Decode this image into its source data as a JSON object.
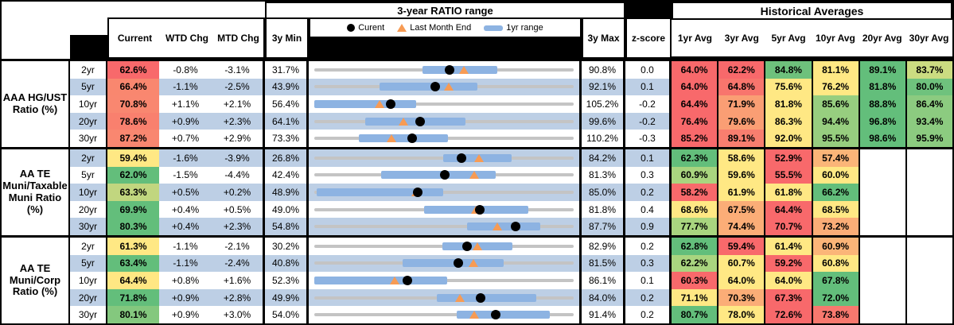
{
  "header": {
    "title_row": {
      "chart_group": "3-year RATIO range",
      "hist_group": "Historical Averages"
    },
    "columns": {
      "current": "Current",
      "wtd": "WTD Chg",
      "mtd": "MTD Chg",
      "y3min": "3y Min",
      "y3max": "3y Max",
      "zscore": "z-score"
    },
    "avg_columns": [
      "1yr Avg",
      "3yr Avg",
      "5yr Avg",
      "10yr Avg",
      "20yr Avg",
      "30yr Avg"
    ],
    "legend": [
      {
        "marker": "current-dot",
        "label": "Curent"
      },
      {
        "marker": "last-month-triangle",
        "label": "Last Month End"
      },
      {
        "marker": "1yr-range-bar",
        "label": "1yr range"
      }
    ]
  },
  "colors": {
    "row_stripe": "#BDCFE5",
    "range_bar": "#8DB3E2",
    "range_track": "#C4C4C4",
    "triangle": "#F79B54",
    "dot": "#000000",
    "red": "#F8696B",
    "yellow": "#FFE884",
    "green": "#63BE7B"
  },
  "chart_data": {
    "type": "bullet-range-table",
    "note": "Per row: gray track spans 3y Min to 3y Max; blue bar = 1yr range; black dot = current; orange triangle = last month end. All values are ratio percentages.",
    "sections": [
      {
        "label": "AAA HG/UST Ratio (%)",
        "rows": [
          {
            "tenor": "2yr",
            "current": 62.6,
            "current_color": "#F8696B",
            "wtd": "-0.8%",
            "mtd": "-3.1%",
            "y3_min": 31.7,
            "y3_max": 90.8,
            "z": "0.0",
            "last_month_end": 65.7,
            "yr1_range": [
              56.3,
              73.3
            ],
            "avgs": [
              {
                "v": 64.0,
                "c": "#F8696B"
              },
              {
                "v": 62.2,
                "c": "#F8696B"
              },
              {
                "v": 84.8,
                "c": "#6EC17C"
              },
              {
                "v": 81.1,
                "c": "#FFE884"
              },
              {
                "v": 89.1,
                "c": "#63BE7B"
              },
              {
                "v": 83.7,
                "c": "#CBDC81"
              }
            ]
          },
          {
            "tenor": "5yr",
            "current": 66.4,
            "current_color": "#F9876F",
            "wtd": "-1.1%",
            "mtd": "-2.5%",
            "y3_min": 43.9,
            "y3_max": 92.1,
            "z": "0.1",
            "last_month_end": 68.9,
            "yr1_range": [
              56.0,
              74.2
            ],
            "avgs": [
              {
                "v": 64.0,
                "c": "#F8696B"
              },
              {
                "v": 64.8,
                "c": "#F8756D"
              },
              {
                "v": 75.6,
                "c": "#FFE884"
              },
              {
                "v": 76.2,
                "c": "#FFE884"
              },
              {
                "v": 81.8,
                "c": "#63BE7B"
              },
              {
                "v": 80.0,
                "c": "#6FC27D"
              }
            ]
          },
          {
            "tenor": "10yr",
            "current": 70.8,
            "current_color": "#F98770",
            "wtd": "+1.1%",
            "mtd": "+2.1%",
            "y3_min": 56.4,
            "y3_max": 105.2,
            "z": "-0.2",
            "last_month_end": 68.7,
            "yr1_range": [
              56.4,
              75.6
            ],
            "avgs": [
              {
                "v": 64.4,
                "c": "#F8696B"
              },
              {
                "v": 71.9,
                "c": "#FA9E74"
              },
              {
                "v": 81.8,
                "c": "#FFE884"
              },
              {
                "v": 85.6,
                "c": "#97CE7F"
              },
              {
                "v": 88.8,
                "c": "#63BE7B"
              },
              {
                "v": 86.4,
                "c": "#8CCB80"
              }
            ]
          },
          {
            "tenor": "20yr",
            "current": 78.6,
            "current_color": "#F9806E",
            "wtd": "+0.9%",
            "mtd": "+2.3%",
            "y3_min": 64.1,
            "y3_max": 99.6,
            "z": "-0.2",
            "last_month_end": 76.3,
            "yr1_range": [
              71.1,
              84.8
            ],
            "avgs": [
              {
                "v": 76.4,
                "c": "#F8696B"
              },
              {
                "v": 79.6,
                "c": "#FA9E74"
              },
              {
                "v": 86.3,
                "c": "#FFE884"
              },
              {
                "v": 94.4,
                "c": "#97CE7F"
              },
              {
                "v": 96.8,
                "c": "#63BE7B"
              },
              {
                "v": 93.4,
                "c": "#8CCB80"
              }
            ]
          },
          {
            "tenor": "30yr",
            "current": 87.2,
            "current_color": "#F98770",
            "wtd": "+0.7%",
            "mtd": "+2.9%",
            "y3_min": 73.3,
            "y3_max": 110.2,
            "z": "-0.3",
            "last_month_end": 84.3,
            "yr1_range": [
              79.6,
              92.3
            ],
            "avgs": [
              {
                "v": 85.2,
                "c": "#F8696B"
              },
              {
                "v": 89.1,
                "c": "#F87E6F"
              },
              {
                "v": 92.0,
                "c": "#FFE884"
              },
              {
                "v": 95.5,
                "c": "#97CE7F"
              },
              {
                "v": 98.6,
                "c": "#63BE7B"
              },
              {
                "v": 95.9,
                "c": "#8CCB80"
              }
            ]
          }
        ]
      },
      {
        "label": "AA TE Muni/Taxable Muni Ratio (%)",
        "rows": [
          {
            "tenor": "2yr",
            "current": 59.4,
            "current_color": "#FFE884",
            "wtd": "-1.6%",
            "mtd": "-3.9%",
            "y3_min": 26.8,
            "y3_max": 84.2,
            "z": "0.1",
            "last_month_end": 63.3,
            "yr1_range": [
              55.4,
              70.5
            ],
            "avgs": [
              {
                "v": 62.3,
                "c": "#63BE7B"
              },
              {
                "v": 58.6,
                "c": "#FFE884"
              },
              {
                "v": 52.9,
                "c": "#F8696B"
              },
              {
                "v": 57.4,
                "c": "#FBB578"
              },
              {
                "v": null,
                "c": "#FFFFFF"
              },
              {
                "v": null,
                "c": "#FFFFFF"
              }
            ]
          },
          {
            "tenor": "5yr",
            "current": 62.0,
            "current_color": "#63BE7B",
            "wtd": "-1.5%",
            "mtd": "-4.4%",
            "y3_min": 42.4,
            "y3_max": 81.3,
            "z": "0.3",
            "last_month_end": 66.4,
            "yr1_range": [
              52.4,
              69.6
            ],
            "avgs": [
              {
                "v": 60.9,
                "c": "#A9D57F"
              },
              {
                "v": 59.6,
                "c": "#FFE884"
              },
              {
                "v": 55.5,
                "c": "#F8696B"
              },
              {
                "v": 60.0,
                "c": "#FFE884"
              },
              {
                "v": null,
                "c": "#FFFFFF"
              },
              {
                "v": null,
                "c": "#FFFFFF"
              }
            ]
          },
          {
            "tenor": "10yr",
            "current": 63.3,
            "current_color": "#C1D67F",
            "wtd": "+0.5%",
            "mtd": "+0.2%",
            "y3_min": 48.9,
            "y3_max": 85.0,
            "z": "0.2",
            "last_month_end": 63.1,
            "yr1_range": [
              49.3,
              66.8
            ],
            "avgs": [
              {
                "v": 58.2,
                "c": "#F8696B"
              },
              {
                "v": 61.9,
                "c": "#FFE884"
              },
              {
                "v": 61.8,
                "c": "#FFE884"
              },
              {
                "v": 66.2,
                "c": "#63BE7B"
              },
              {
                "v": null,
                "c": "#FFFFFF"
              },
              {
                "v": null,
                "c": "#FFFFFF"
              }
            ]
          },
          {
            "tenor": "20yr",
            "current": 69.9,
            "current_color": "#63BE7B",
            "wtd": "+0.4%",
            "mtd": "+0.5%",
            "y3_min": 49.0,
            "y3_max": 81.8,
            "z": "0.4",
            "last_month_end": 69.4,
            "yr1_range": [
              62.9,
              76.1
            ],
            "avgs": [
              {
                "v": 68.6,
                "c": "#FFE884"
              },
              {
                "v": 67.5,
                "c": "#FBAD77"
              },
              {
                "v": 64.4,
                "c": "#F8696B"
              },
              {
                "v": 68.5,
                "c": "#FFE884"
              },
              {
                "v": null,
                "c": "#FFFFFF"
              },
              {
                "v": null,
                "c": "#FFFFFF"
              }
            ]
          },
          {
            "tenor": "30yr",
            "current": 80.3,
            "current_color": "#63BE7B",
            "wtd": "+0.4%",
            "mtd": "+2.3%",
            "y3_min": 54.8,
            "y3_max": 87.7,
            "z": "0.9",
            "last_month_end": 78.0,
            "yr1_range": [
              74.2,
              83.4
            ],
            "avgs": [
              {
                "v": 77.7,
                "c": "#A9D57F"
              },
              {
                "v": 74.4,
                "c": "#FBAD77"
              },
              {
                "v": 70.7,
                "c": "#F8696B"
              },
              {
                "v": 73.2,
                "c": "#FBAD77"
              },
              {
                "v": null,
                "c": "#FFFFFF"
              },
              {
                "v": null,
                "c": "#FFFFFF"
              }
            ]
          }
        ]
      },
      {
        "label": "AA TE Muni/Corp Ratio (%)",
        "rows": [
          {
            "tenor": "2yr",
            "current": 61.3,
            "current_color": "#FFE884",
            "wtd": "-1.1%",
            "mtd": "-2.1%",
            "y3_min": 30.2,
            "y3_max": 82.9,
            "z": "0.2",
            "last_month_end": 63.4,
            "yr1_range": [
              56.3,
              70.5
            ],
            "avgs": [
              {
                "v": 62.8,
                "c": "#63BE7B"
              },
              {
                "v": 59.4,
                "c": "#F8696B"
              },
              {
                "v": 61.4,
                "c": "#FFE884"
              },
              {
                "v": 60.9,
                "c": "#FBB578"
              },
              {
                "v": null,
                "c": "#FFFFFF"
              },
              {
                "v": null,
                "c": "#FFFFFF"
              }
            ]
          },
          {
            "tenor": "5yr",
            "current": 63.4,
            "current_color": "#63BE7B",
            "wtd": "-1.1%",
            "mtd": "-2.4%",
            "y3_min": 40.8,
            "y3_max": 81.5,
            "z": "0.3",
            "last_month_end": 65.8,
            "yr1_range": [
              54.7,
              70.5
            ],
            "avgs": [
              {
                "v": 62.2,
                "c": "#A9D57F"
              },
              {
                "v": 60.7,
                "c": "#FFE884"
              },
              {
                "v": 59.2,
                "c": "#F8696B"
              },
              {
                "v": 60.8,
                "c": "#FFE884"
              },
              {
                "v": null,
                "c": "#FFFFFF"
              },
              {
                "v": null,
                "c": "#FFFFFF"
              }
            ]
          },
          {
            "tenor": "10yr",
            "current": 64.4,
            "current_color": "#FFE783",
            "wtd": "+0.8%",
            "mtd": "+1.6%",
            "y3_min": 52.3,
            "y3_max": 86.1,
            "z": "0.1",
            "last_month_end": 62.8,
            "yr1_range": [
              52.3,
              69.6
            ],
            "avgs": [
              {
                "v": 60.3,
                "c": "#F8696B"
              },
              {
                "v": 64.0,
                "c": "#FFE884"
              },
              {
                "v": 64.0,
                "c": "#FFE884"
              },
              {
                "v": 67.8,
                "c": "#63BE7B"
              },
              {
                "v": null,
                "c": "#FFFFFF"
              },
              {
                "v": null,
                "c": "#FFFFFF"
              }
            ]
          },
          {
            "tenor": "20yr",
            "current": 71.8,
            "current_color": "#63BE7B",
            "wtd": "+0.9%",
            "mtd": "+2.8%",
            "y3_min": 49.9,
            "y3_max": 84.0,
            "z": "0.2",
            "last_month_end": 69.0,
            "yr1_range": [
              66.0,
              79.1
            ],
            "avgs": [
              {
                "v": 71.1,
                "c": "#FFE884"
              },
              {
                "v": 70.3,
                "c": "#FBAD77"
              },
              {
                "v": 67.3,
                "c": "#F8696B"
              },
              {
                "v": 72.0,
                "c": "#63BE7B"
              },
              {
                "v": null,
                "c": "#FFFFFF"
              },
              {
                "v": null,
                "c": "#FFFFFF"
              }
            ]
          },
          {
            "tenor": "30yr",
            "current": 80.1,
            "current_color": "#84C87E",
            "wtd": "+0.9%",
            "mtd": "+3.0%",
            "y3_min": 54.0,
            "y3_max": 91.4,
            "z": "0.2",
            "last_month_end": 77.1,
            "yr1_range": [
              74.5,
              87.9
            ],
            "avgs": [
              {
                "v": 80.7,
                "c": "#63BE7B"
              },
              {
                "v": 78.0,
                "c": "#FFE884"
              },
              {
                "v": 72.6,
                "c": "#F8696B"
              },
              {
                "v": 73.8,
                "c": "#F8786E"
              },
              {
                "v": null,
                "c": "#FFFFFF"
              },
              {
                "v": null,
                "c": "#FFFFFF"
              }
            ]
          }
        ]
      }
    ]
  }
}
